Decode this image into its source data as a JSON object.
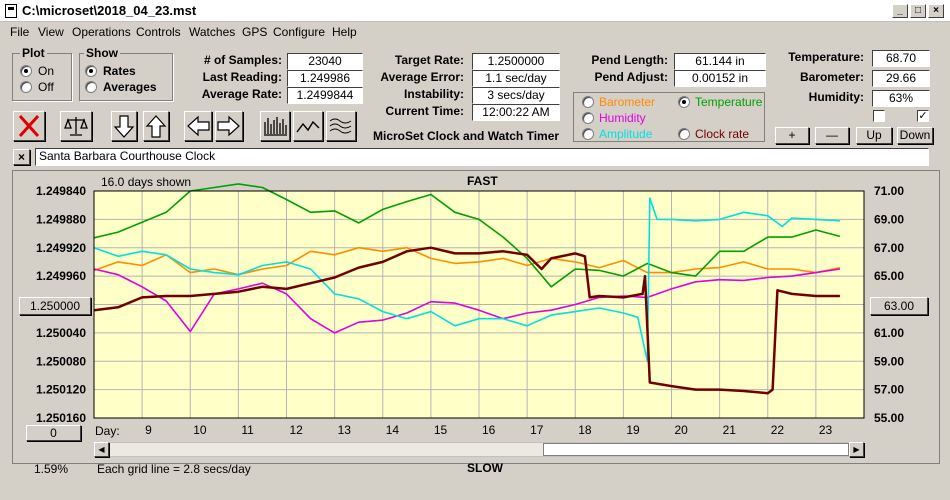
{
  "window": {
    "title": "C:\\microset\\2018_04_23.mst"
  },
  "menu": [
    "File",
    "View",
    "Operations",
    "Controls",
    "Watches",
    "GPS",
    "Configure",
    "Help"
  ],
  "plot_group": {
    "label": "Plot",
    "on": "On",
    "off": "Off",
    "selected": "On"
  },
  "show_group": {
    "label": "Show",
    "rates": "Rates",
    "averages": "Averages",
    "selected": "Rates"
  },
  "stats": {
    "samples_label": "# of Samples:",
    "samples": "23040",
    "last_label": "Last Reading:",
    "last": "1.249986",
    "avg_label": "Average Rate:",
    "avg": "1.2499844",
    "target_label": "Target Rate:",
    "target": "1.2500000",
    "averr_label": "Average Error:",
    "averr": "1.1 sec/day",
    "instab_label": "Instability:",
    "instab": "3 secs/day",
    "time_label": "Current Time:",
    "time": "12:00:22 AM",
    "plen_label": "Pend Length:",
    "plen": "61.144 in",
    "padj_label": "Pend Adjust:",
    "padj": "0.00152 in",
    "temp_label": "Temperature:",
    "temp": "68.70",
    "baro_label": "Barometer:",
    "baro": "29.66",
    "hum_label": "Humidity:",
    "hum": "63%"
  },
  "app_title": "MicroSet Clock and Watch Timer",
  "legend": {
    "barometer": "Barometer",
    "temperature": "Temperature",
    "humidity": "Humidity",
    "amplitude": "Amplitude",
    "clockrate": "Clock rate",
    "selected": "Temperature"
  },
  "scale_buttons": {
    "plus": "+",
    "minus": "—",
    "up": "Up",
    "down": "Down"
  },
  "watch_name": "Santa Barbara Courthouse Clock",
  "chart_header": {
    "days_shown": "16.0 days shown",
    "fast": "FAST",
    "slow": "SLOW",
    "grid_note": "Each grid line = 2.8 secs/day",
    "pct": "1.59%",
    "day_label": "Day:"
  },
  "center_left_button": "1.250000",
  "center_right_button": "63.00",
  "zero_button": "0",
  "colors": {
    "plot_bg": "#ffffc8",
    "barometer": "#ff8c00",
    "temperature": "#00a000",
    "humidity": "#e000e0",
    "amplitude": "#00e0e0",
    "clockrate": "#700000"
  },
  "chart_data": {
    "type": "line",
    "left_ticks": [
      "1.249840",
      "1.249880",
      "1.249920",
      "1.249960",
      "1.250000",
      "1.250040",
      "1.250080",
      "1.250120",
      "1.250160"
    ],
    "right_ticks": [
      "71.00",
      "69.00",
      "67.00",
      "65.00",
      "63.00",
      "61.00",
      "59.00",
      "57.00",
      "55.00"
    ],
    "x_ticks": [
      "9",
      "10",
      "11",
      "12",
      "13",
      "14",
      "15",
      "16",
      "17",
      "18",
      "19",
      "20",
      "21",
      "22",
      "23"
    ],
    "xlim": [
      8.0,
      24.0
    ],
    "ylim": [
      1.25016,
      1.24984
    ],
    "series": [
      {
        "key": "barometer",
        "x": [
          8,
          8.5,
          9,
          9.5,
          10,
          10.5,
          11,
          11.5,
          12,
          12.5,
          13,
          13.5,
          14,
          14.5,
          15,
          15.5,
          16,
          16.5,
          17,
          17.5,
          18,
          18.5,
          19,
          19.5,
          20,
          20.5,
          21,
          21.5,
          22,
          22.5,
          23,
          23.5
        ],
        "y": [
          1.249952,
          1.24994,
          1.249945,
          1.24993,
          1.249955,
          1.24995,
          1.249958,
          1.24995,
          1.249945,
          1.249925,
          1.24993,
          1.24992,
          1.249925,
          1.24992,
          1.249935,
          1.249942,
          1.24994,
          1.249935,
          1.249945,
          1.249935,
          1.24994,
          1.249948,
          1.249938,
          1.249955,
          1.249955,
          1.24995,
          1.249948,
          1.24994,
          1.24995,
          1.24995,
          1.249955,
          1.249948
        ]
      },
      {
        "key": "temperature",
        "x": [
          8,
          8.5,
          9,
          9.5,
          10,
          10.5,
          11,
          11.5,
          12,
          12.5,
          13,
          13.5,
          14,
          14.5,
          15,
          15.5,
          16,
          16.5,
          17,
          17.5,
          18,
          18.5,
          19,
          19.5,
          20,
          20.5,
          21,
          21.5,
          22,
          22.5,
          23,
          23.5
        ],
        "y": [
          1.249906,
          1.249898,
          1.249884,
          1.24987,
          1.24984,
          1.249835,
          1.24983,
          1.249835,
          1.249852,
          1.24987,
          1.249868,
          1.249885,
          1.249866,
          1.249855,
          1.249845,
          1.24987,
          1.24988,
          1.249905,
          1.249935,
          1.249975,
          1.24995,
          1.249952,
          1.24996,
          1.249942,
          1.249955,
          1.24996,
          1.249925,
          1.249925,
          1.249905,
          1.249905,
          1.249895,
          1.249904
        ]
      },
      {
        "key": "humidity",
        "x": [
          8,
          8.5,
          9,
          9.5,
          10,
          10.5,
          11,
          11.5,
          12,
          12.5,
          13,
          13.5,
          14,
          14.5,
          15,
          15.5,
          16,
          16.5,
          17,
          17.5,
          18,
          18.5,
          19,
          19.5,
          20,
          20.5,
          21,
          21.5,
          22,
          22.5,
          23,
          23.5
        ],
        "y": [
          1.24995,
          1.249958,
          1.249975,
          1.249995,
          1.250038,
          1.249985,
          1.249978,
          1.24997,
          1.249985,
          1.25002,
          1.25004,
          1.250025,
          1.250022,
          1.250012,
          1.249996,
          1.249998,
          1.250008,
          1.25002,
          1.250012,
          1.250008,
          1.25,
          1.24999,
          1.249988,
          1.24999,
          1.249978,
          1.249968,
          1.249965,
          1.249966,
          1.249962,
          1.24996,
          1.249955,
          1.24995
        ]
      },
      {
        "key": "amplitude",
        "x": [
          8,
          8.5,
          9,
          9.5,
          10,
          10.5,
          11,
          11.5,
          12,
          12.5,
          13,
          13.5,
          14,
          14.5,
          15,
          15.5,
          16,
          16.5,
          17,
          17.5,
          18,
          18.5,
          19,
          19.3,
          19.5,
          19.55,
          19.7,
          20,
          20.5,
          21,
          21.5,
          22,
          22.3,
          22.5,
          23,
          23.5
        ],
        "y": [
          1.24992,
          1.249932,
          1.249925,
          1.24993,
          1.24995,
          1.249955,
          1.249958,
          1.249945,
          1.24994,
          1.24995,
          1.249985,
          1.249992,
          1.25001,
          1.25002,
          1.25001,
          1.25003,
          1.25002,
          1.25002,
          1.25003,
          1.250015,
          1.25001,
          1.250005,
          1.250012,
          1.250018,
          1.25008,
          1.24985,
          1.24988,
          1.24988,
          1.249882,
          1.24988,
          1.24987,
          1.249875,
          1.24989,
          1.249878,
          1.24988,
          1.249882
        ]
      },
      {
        "key": "clockrate",
        "x": [
          8,
          8.5,
          9,
          9.5,
          10,
          10.5,
          11,
          11.5,
          12,
          12.5,
          13,
          13.5,
          14,
          14.5,
          15,
          15.5,
          16,
          16.5,
          17,
          17.3,
          17.5,
          18,
          18.2,
          18.3,
          18.5,
          19,
          19.4,
          19.45,
          19.55,
          20,
          20.5,
          21,
          21.5,
          22,
          22.1,
          22.2,
          22.5,
          23,
          23.5
        ],
        "y": [
          1.250008,
          1.250004,
          1.24999,
          1.249988,
          1.249988,
          1.249985,
          1.249982,
          1.249975,
          1.249978,
          1.24997,
          1.249962,
          1.249948,
          1.24994,
          1.249925,
          1.24992,
          1.249928,
          1.249928,
          1.249925,
          1.24993,
          1.24995,
          1.249935,
          1.249928,
          1.249932,
          1.24999,
          1.249988,
          1.24999,
          1.249985,
          1.24996,
          1.25011,
          1.250115,
          1.25012,
          1.25012,
          1.250122,
          1.250125,
          1.25012,
          1.24998,
          1.249985,
          1.249988,
          1.249988
        ]
      }
    ]
  }
}
